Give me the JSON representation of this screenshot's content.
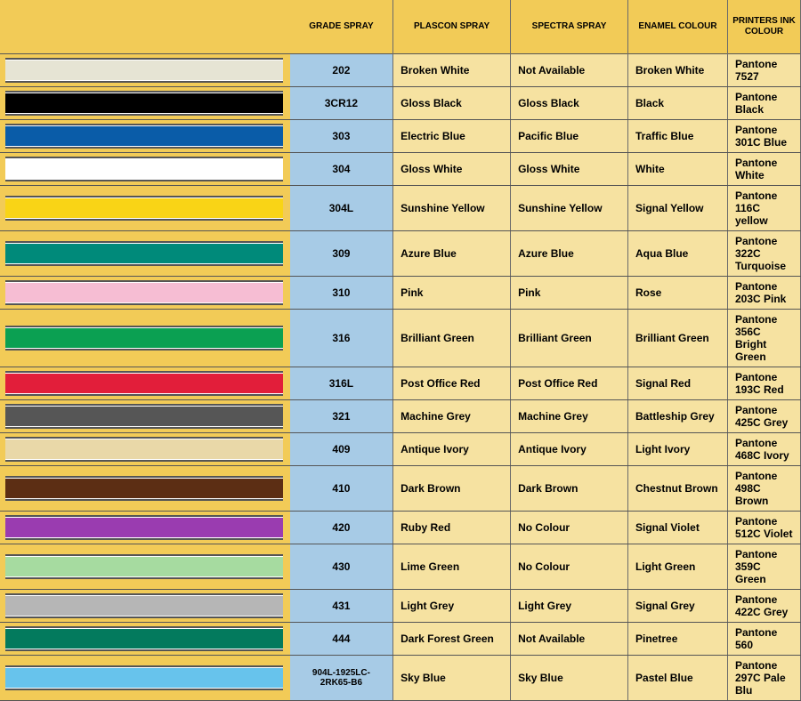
{
  "table": {
    "header_bg": "#f2cb57",
    "grade_col_bg": "#a7cbe6",
    "text_col_bg": "#f6e2a1",
    "row_border": "#555555",
    "headers": {
      "grade": "GRADE SPRAY",
      "plascon": "PLASCON SPRAY",
      "spectra": "SPECTRA SPRAY",
      "enamel": "ENAMEL COLOUR",
      "printer": "PRINTERS INK COLOUR"
    },
    "rows": [
      {
        "swatch": "#e6e4d4",
        "grade": "202",
        "plascon": "Broken White",
        "spectra": "Not Available",
        "enamel": "Broken White",
        "printer": "Pantone 7527"
      },
      {
        "swatch": "#000000",
        "grade": "3CR12",
        "plascon": "Gloss Black",
        "spectra": "Gloss Black",
        "enamel": "Black",
        "printer": "Pantone Black"
      },
      {
        "swatch": "#0a5ca8",
        "grade": "303",
        "plascon": "Electric Blue",
        "spectra": "Pacific Blue",
        "enamel": "Traffic Blue",
        "printer": "Pantone 301C Blue"
      },
      {
        "swatch": "#ffffff",
        "grade": "304",
        "plascon": "Gloss White",
        "spectra": "Gloss White",
        "enamel": "White",
        "printer": "Pantone White"
      },
      {
        "swatch": "#f9d416",
        "grade": "304L",
        "plascon": "Sunshine Yellow",
        "spectra": "Sunshine Yellow",
        "enamel": "Signal Yellow",
        "printer": "Pantone 116C yellow"
      },
      {
        "swatch": "#008a7a",
        "grade": "309",
        "plascon": "Azure Blue",
        "spectra": "Azure Blue",
        "enamel": "Aqua Blue",
        "printer": "Pantone 322C Turquoise"
      },
      {
        "swatch": "#f6bdd3",
        "grade": "310",
        "plascon": "Pink",
        "spectra": "Pink",
        "enamel": "Rose",
        "printer": "Pantone 203C Pink"
      },
      {
        "swatch": "#0ba052",
        "grade": "316",
        "plascon": "Brilliant Green",
        "spectra": "Brilliant Green",
        "enamel": "Brilliant Green",
        "printer": "Pantone 356C Bright Green"
      },
      {
        "swatch": "#e21e3a",
        "grade": "316L",
        "plascon": "Post Office Red",
        "spectra": "Post Office Red",
        "enamel": "Signal Red",
        "printer": "Pantone 193C Red"
      },
      {
        "swatch": "#565656",
        "grade": "321",
        "plascon": "Machine Grey",
        "spectra": "Machine Grey",
        "enamel": "Battleship Grey",
        "printer": "Pantone 425C Grey"
      },
      {
        "swatch": "#e9d8a8",
        "grade": "409",
        "plascon": "Antique Ivory",
        "spectra": "Antique Ivory",
        "enamel": "Light Ivory",
        "printer": "Pantone 468C Ivory"
      },
      {
        "swatch": "#5c2e14",
        "grade": "410",
        "plascon": "Dark Brown",
        "spectra": "Dark Brown",
        "enamel": "Chestnut Brown",
        "printer": "Pantone 498C Brown"
      },
      {
        "swatch": "#9a3cb0",
        "grade": "420",
        "plascon": "Ruby Red",
        "spectra": "No Colour",
        "enamel": "Signal Violet",
        "printer": "Pantone 512C Violet"
      },
      {
        "swatch": "#a6dba0",
        "grade": "430",
        "plascon": "Lime Green",
        "spectra": "No Colour",
        "enamel": "Light Green",
        "printer": "Pantone 359C Green"
      },
      {
        "swatch": "#b6b6b6",
        "grade": "431",
        "plascon": "Light Grey",
        "spectra": "Light Grey",
        "enamel": "Signal Grey",
        "printer": "Pantone 422C Grey"
      },
      {
        "swatch": "#037a5d",
        "grade": "444",
        "plascon": "Dark Forest Green",
        "spectra": "Not Available",
        "enamel": "Pinetree",
        "printer": "Pantone 560"
      },
      {
        "swatch": "#67c3ec",
        "grade": "904L-1925LC-2RK65-B6",
        "grade_small": true,
        "plascon": "Sky Blue",
        "spectra": "Sky Blue",
        "enamel": "Pastel Blue",
        "printer": "Pantone 297C Pale Blu"
      }
    ]
  }
}
